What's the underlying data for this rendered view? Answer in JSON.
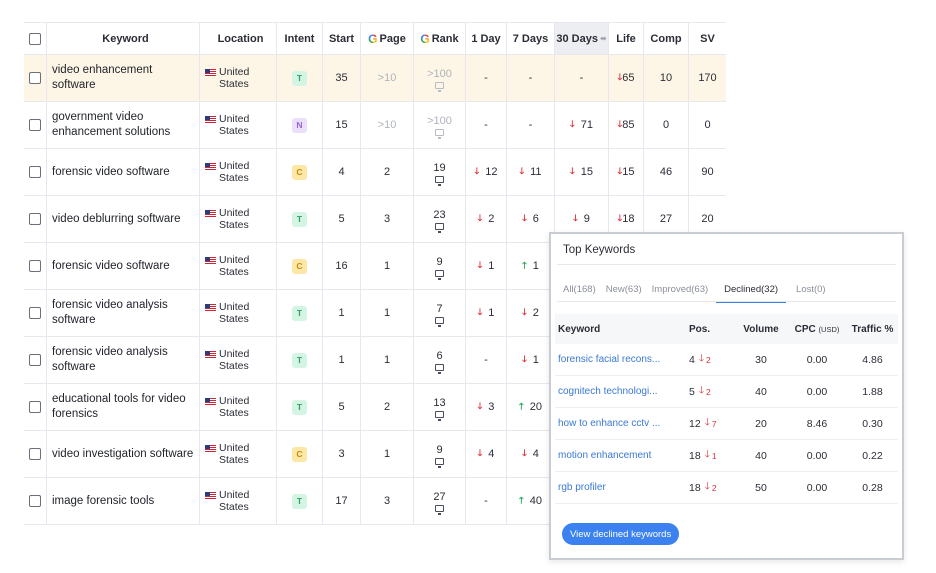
{
  "table": {
    "headers": {
      "keyword": "Keyword",
      "location": "Location",
      "intent": "Intent",
      "start": "Start",
      "page": "Page",
      "rank": "Rank",
      "day1": "1 Day",
      "days7": "7 Days",
      "days30": "30 Days",
      "life": "Life",
      "comp": "Comp",
      "sv": "SV"
    },
    "rows": [
      {
        "keyword": "video enhancement software",
        "loc1": "United",
        "loc2": "States",
        "intent": "T",
        "start": "35",
        "page": ">10",
        "rank": ">100",
        "d1": "-",
        "d1_dir": "",
        "d7": "-",
        "d7_dir": "",
        "d30": "-",
        "d30_dir": "",
        "life": "65",
        "life_dir": "down",
        "comp": "10",
        "sv": "170",
        "muted": true
      },
      {
        "keyword": "government video enhancement solutions",
        "loc1": "United",
        "loc2": "States",
        "intent": "N",
        "start": "15",
        "page": ">10",
        "rank": ">100",
        "d1": "-",
        "d1_dir": "",
        "d7": "-",
        "d7_dir": "",
        "d30": "71",
        "d30_dir": "down",
        "life": "85",
        "life_dir": "down",
        "comp": "0",
        "sv": "0",
        "muted": true
      },
      {
        "keyword": "forensic video software",
        "loc1": "United",
        "loc2": "States",
        "intent": "C",
        "start": "4",
        "page": "2",
        "rank": "19",
        "d1": "12",
        "d1_dir": "down",
        "d7": "11",
        "d7_dir": "down",
        "d30": "15",
        "d30_dir": "down",
        "life": "15",
        "life_dir": "down",
        "comp": "46",
        "sv": "90",
        "muted": false
      },
      {
        "keyword": "video deblurring software",
        "loc1": "United",
        "loc2": "States",
        "intent": "T",
        "start": "5",
        "page": "3",
        "rank": "23",
        "d1": "2",
        "d1_dir": "down",
        "d7": "6",
        "d7_dir": "down",
        "d30": "9",
        "d30_dir": "down",
        "life": "18",
        "life_dir": "down",
        "comp": "27",
        "sv": "20",
        "muted": false
      },
      {
        "keyword": "forensic video software",
        "loc1": "United",
        "loc2": "States",
        "intent": "C",
        "start": "16",
        "page": "1",
        "rank": "9",
        "d1": "1",
        "d1_dir": "down",
        "d7": "1",
        "d7_dir": "up",
        "d30": "",
        "d30_dir": "",
        "life": "",
        "life_dir": "",
        "comp": "",
        "sv": "",
        "muted": false
      },
      {
        "keyword": "forensic video analysis software",
        "loc1": "United",
        "loc2": "States",
        "intent": "T",
        "start": "1",
        "page": "1",
        "rank": "7",
        "d1": "1",
        "d1_dir": "down",
        "d7": "2",
        "d7_dir": "down",
        "d30": "",
        "d30_dir": "",
        "life": "",
        "life_dir": "",
        "comp": "",
        "sv": "",
        "muted": false
      },
      {
        "keyword": "forensic video analysis software",
        "loc1": "United",
        "loc2": "States",
        "intent": "T",
        "start": "1",
        "page": "1",
        "rank": "6",
        "d1": "-",
        "d1_dir": "",
        "d7": "1",
        "d7_dir": "down",
        "d30": "",
        "d30_dir": "",
        "life": "",
        "life_dir": "",
        "comp": "",
        "sv": "",
        "muted": false
      },
      {
        "keyword": "educational tools for video forensics",
        "loc1": "United",
        "loc2": "States",
        "intent": "T",
        "start": "5",
        "page": "2",
        "rank": "13",
        "d1": "3",
        "d1_dir": "down",
        "d7": "20",
        "d7_dir": "up",
        "d30": "",
        "d30_dir": "",
        "life": "",
        "life_dir": "",
        "comp": "",
        "sv": "",
        "muted": false
      },
      {
        "keyword": "video investigation software",
        "loc1": "United",
        "loc2": "States",
        "intent": "C",
        "start": "3",
        "page": "1",
        "rank": "9",
        "d1": "4",
        "d1_dir": "down",
        "d7": "4",
        "d7_dir": "down",
        "d30": "",
        "d30_dir": "",
        "life": "",
        "life_dir": "",
        "comp": "",
        "sv": "",
        "muted": false
      },
      {
        "keyword": "image forensic tools",
        "loc1": "United",
        "loc2": "States",
        "intent": "T",
        "start": "17",
        "page": "3",
        "rank": "27",
        "d1": "-",
        "d1_dir": "",
        "d7": "40",
        "d7_dir": "up",
        "d30": "",
        "d30_dir": "",
        "life": "",
        "life_dir": "",
        "comp": "",
        "sv": "",
        "muted": false
      }
    ]
  },
  "card": {
    "title": "Top Keywords",
    "tabs": [
      "All(168)",
      "New(63)",
      "Improved(63)",
      "Declined(32)",
      "Lost(0)"
    ],
    "active_tab": 3,
    "headers": {
      "keyword": "Keyword",
      "pos": "Pos.",
      "volume": "Volume",
      "cpc": "CPC",
      "cpc_unit": "(USD)",
      "traffic": "Traffic %"
    },
    "rows": [
      {
        "keyword": "forensic facial recons...",
        "pos": "4",
        "change": "2",
        "volume": "30",
        "cpc": "0.00",
        "traffic": "4.86"
      },
      {
        "keyword": "cognitech technologi...",
        "pos": "5",
        "change": "2",
        "volume": "40",
        "cpc": "0.00",
        "traffic": "1.88"
      },
      {
        "keyword": "how to enhance cctv ...",
        "pos": "12",
        "change": "7",
        "volume": "20",
        "cpc": "8.46",
        "traffic": "0.30"
      },
      {
        "keyword": "motion enhancement",
        "pos": "18",
        "change": "1",
        "volume": "40",
        "cpc": "0.00",
        "traffic": "0.22"
      },
      {
        "keyword": "rgb profiler",
        "pos": "18",
        "change": "2",
        "volume": "50",
        "cpc": "0.00",
        "traffic": "0.28"
      }
    ],
    "cta_label": "View declined keywords"
  },
  "icons": {
    "google": "G",
    "arrow_down": "🡓",
    "arrow_up": "🡑",
    "sort": "⬌"
  }
}
